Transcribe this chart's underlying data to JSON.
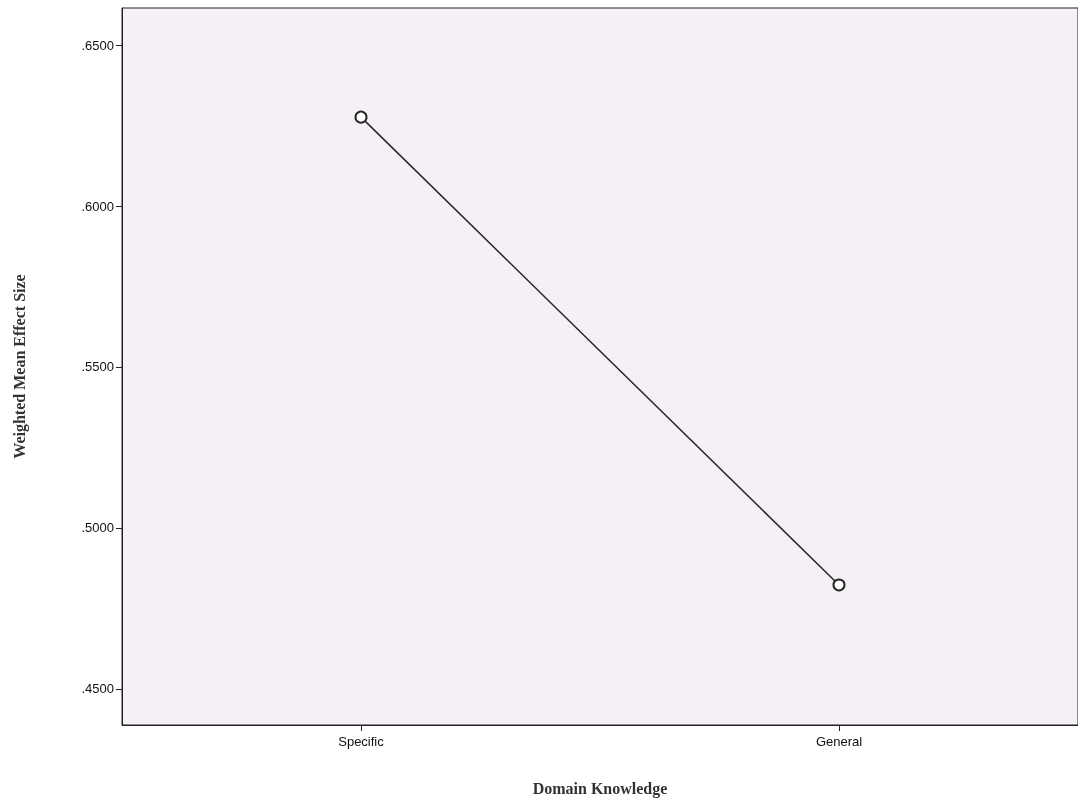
{
  "chart_data": {
    "type": "line",
    "xlabel": "Domain Knowledge",
    "ylabel": "Weighted Mean Effect Size",
    "categories": [
      "Specific",
      "General"
    ],
    "series": [
      {
        "color": "#262626",
        "values": [
          0.6276,
          0.4823
        ]
      }
    ],
    "ylim": [
      0.4388,
      0.6615
    ],
    "yticks": [
      {
        "value": 0.45,
        "label": ".4500"
      },
      {
        "value": 0.5,
        "label": ".5000"
      },
      {
        "value": 0.55,
        "label": ".5500"
      },
      {
        "value": 0.6,
        "label": ".6000"
      },
      {
        "value": 0.65,
        "label": ".6500"
      }
    ],
    "grid": false,
    "marker": "circle",
    "line_style": "solid"
  }
}
